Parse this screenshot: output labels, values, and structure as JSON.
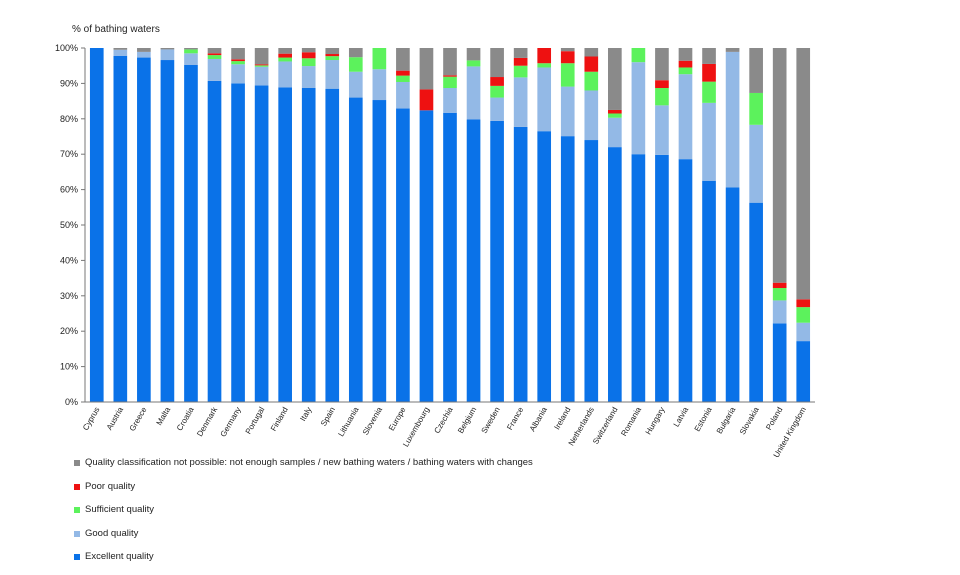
{
  "chart_data": {
    "type": "bar",
    "stacked": true,
    "ylabel": "% of bathing waters",
    "ylim": [
      0,
      100
    ],
    "yticks": [
      "0%",
      "10%",
      "20%",
      "30%",
      "40%",
      "50%",
      "60%",
      "70%",
      "80%",
      "90%",
      "100%"
    ],
    "grid": false,
    "legend_position": "bottom-left",
    "categories": [
      "Cyprus",
      "Austria",
      "Greece",
      "Malta",
      "Croatia",
      "Denmark",
      "Germany",
      "Portugal",
      "Finland",
      "Italy",
      "Spain",
      "Lithuania",
      "Slovenia",
      "Europe",
      "Luxembourg",
      "Czechia",
      "Belgium",
      "Sweden",
      "France",
      "Albania",
      "Ireland",
      "Netherlands",
      "Switzerland",
      "Romania",
      "Hungary",
      "Latvia",
      "Estonia",
      "Bulgaria",
      "Slovakia",
      "Poland",
      "United Kingdom"
    ],
    "series": [
      {
        "name": "Excellent quality",
        "color": "#0a72e8",
        "values": [
          100,
          97.8,
          97.3,
          96.6,
          95.2,
          90.7,
          90.0,
          89.4,
          88.9,
          88.7,
          88.5,
          86.0,
          85.3,
          82.9,
          82.4,
          81.7,
          79.8,
          79.4,
          77.7,
          76.5,
          75.1,
          74.0,
          72.0,
          70.0,
          69.8,
          68.6,
          62.5,
          60.6,
          56.3,
          22.2,
          17.2
        ]
      },
      {
        "name": "Good quality",
        "color": "#93b9e6",
        "values": [
          0,
          1.7,
          1.6,
          3.0,
          3.3,
          6.2,
          5.4,
          5.3,
          7.3,
          6.2,
          8.1,
          7.3,
          8.7,
          7.5,
          0,
          7.0,
          15.0,
          6.6,
          14.0,
          18.0,
          14.0,
          14.0,
          8.3,
          26.0,
          14.0,
          24.0,
          22.0,
          38.3,
          22.0,
          6.5,
          5.2
        ]
      },
      {
        "name": "Sufficient quality",
        "color": "#5cf25c",
        "values": [
          0,
          0,
          0,
          0,
          1.1,
          1.1,
          0.9,
          0.4,
          1.1,
          2.2,
          1.1,
          4.1,
          6.0,
          1.8,
          0,
          3.2,
          1.7,
          3.3,
          3.3,
          1.2,
          6.6,
          5.3,
          1.2,
          4.0,
          4.9,
          1.9,
          6.0,
          0,
          9.0,
          3.5,
          4.4
        ]
      },
      {
        "name": "Poor quality",
        "color": "#ee1111",
        "values": [
          0,
          0,
          0,
          0,
          0,
          0.5,
          0.5,
          0.3,
          1.1,
          1.7,
          0.6,
          0,
          0,
          1.4,
          5.9,
          0.4,
          0,
          2.5,
          2.2,
          4.3,
          3.4,
          4.3,
          1.0,
          0,
          2.2,
          1.9,
          5.0,
          0,
          0,
          1.5,
          2.2
        ]
      },
      {
        "name": "Quality classification not possible:  not enough samples / new bathing waters / bathing waters with changes",
        "color": "#8a8a8a",
        "values": [
          0,
          0.5,
          1.1,
          0.4,
          0.4,
          1.5,
          3.2,
          4.6,
          1.6,
          1.2,
          1.7,
          2.6,
          0,
          6.4,
          11.7,
          7.7,
          3.5,
          8.2,
          2.8,
          0,
          0.9,
          2.4,
          17.5,
          0,
          9.1,
          3.6,
          4.5,
          1.1,
          12.7,
          66.3,
          71.0
        ]
      }
    ]
  }
}
